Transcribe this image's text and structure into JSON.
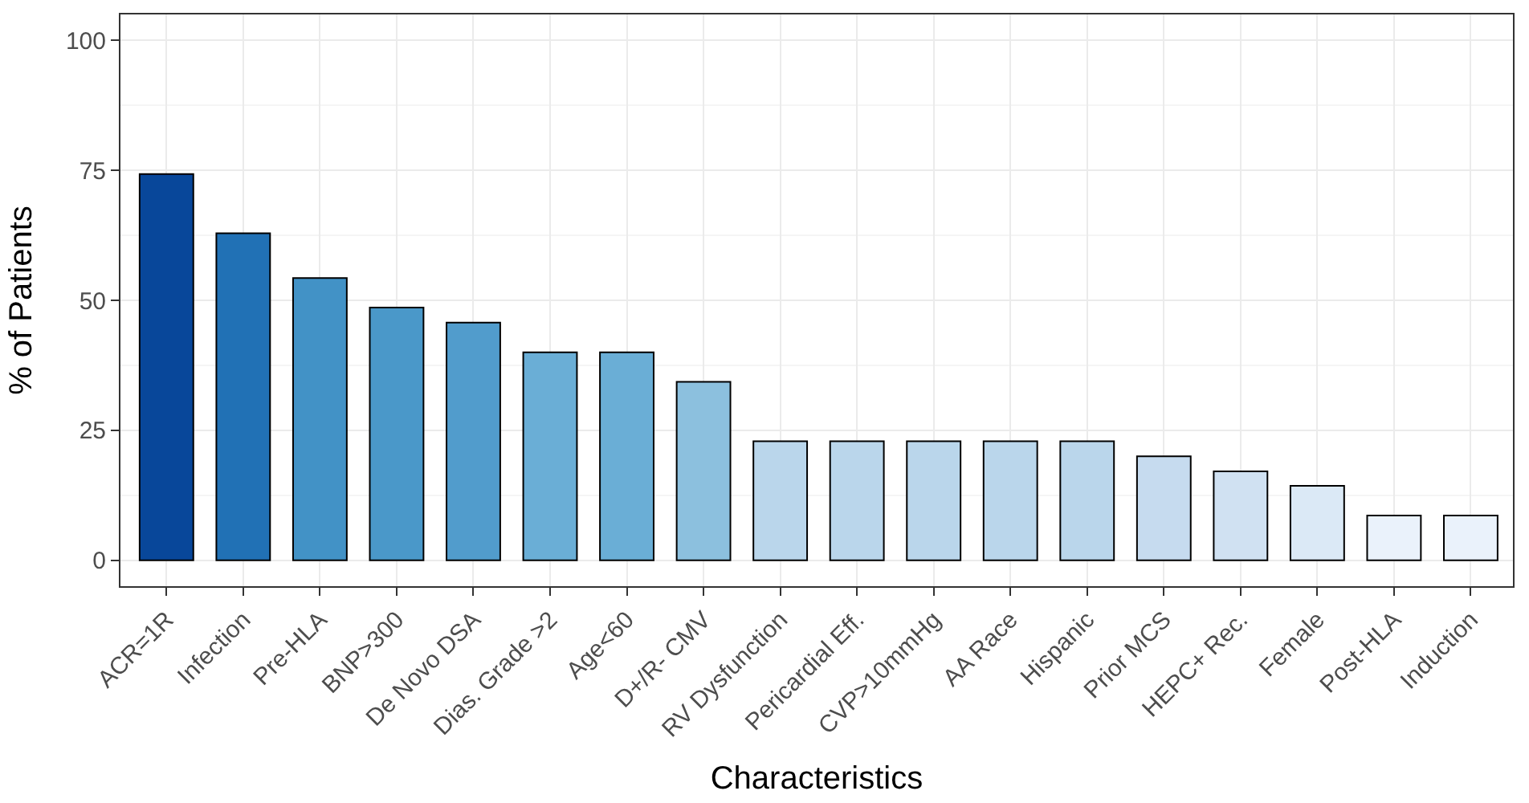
{
  "chart_data": {
    "type": "bar",
    "xlabel": "Characteristics",
    "ylabel": "% of Patients",
    "categories": [
      "ACR=1R",
      "Infection",
      "Pre-HLA",
      "BNP>300",
      "De Novo DSA",
      "Dias. Grade >2",
      "Age<60",
      "D+/R- CMV",
      "RV Dysfunction",
      "Pericardial Eff.",
      "CVP>10mmHg",
      "AA Race",
      "Hispanic",
      "Prior MCS",
      "HEPC+ Rec.",
      "Female",
      "Post-HLA",
      "Induction"
    ],
    "values": [
      74.3,
      62.9,
      54.3,
      48.6,
      45.7,
      40,
      40,
      34.3,
      22.9,
      22.9,
      22.9,
      22.9,
      22.9,
      20,
      17.1,
      14.3,
      8.6,
      8.6
    ],
    "colors": [
      "#08479a",
      "#2171b5",
      "#4292c6",
      "#4a98c9",
      "#519ccc",
      "#6aaed6",
      "#6aaed6",
      "#8cc0de",
      "#bad6eb",
      "#bad6eb",
      "#bad6eb",
      "#bad6eb",
      "#bad6eb",
      "#c6dbef",
      "#d0e1f2",
      "#dbe9f6",
      "#eaf2fb",
      "#eaf2fb"
    ],
    "ylim": [
      -5,
      105
    ],
    "yticks": [
      0,
      25,
      50,
      75,
      100
    ],
    "grid": true
  }
}
